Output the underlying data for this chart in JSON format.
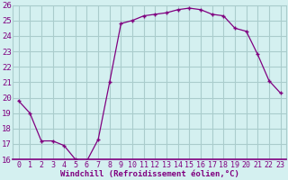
{
  "x": [
    0,
    1,
    2,
    3,
    4,
    5,
    6,
    7,
    8,
    9,
    10,
    11,
    12,
    13,
    14,
    15,
    16,
    17,
    18,
    19,
    20,
    21,
    22,
    23
  ],
  "y": [
    19.8,
    19.0,
    17.2,
    17.2,
    16.9,
    16.0,
    15.9,
    17.3,
    21.0,
    24.8,
    25.0,
    25.3,
    25.4,
    25.5,
    25.7,
    25.8,
    25.7,
    25.4,
    25.3,
    24.5,
    24.3,
    22.8,
    21.1,
    20.3
  ],
  "line_color": "#800080",
  "marker_color": "#800080",
  "bg_color": "#d4f0f0",
  "grid_color": "#aacccc",
  "xlabel": "Windchill (Refroidissement éolien,°C)",
  "ylim": [
    16,
    26
  ],
  "xlim": [
    -0.5,
    23.5
  ],
  "yticks": [
    16,
    17,
    18,
    19,
    20,
    21,
    22,
    23,
    24,
    25,
    26
  ],
  "xticks": [
    0,
    1,
    2,
    3,
    4,
    5,
    6,
    7,
    8,
    9,
    10,
    11,
    12,
    13,
    14,
    15,
    16,
    17,
    18,
    19,
    20,
    21,
    22,
    23
  ],
  "tick_label_color": "#800080",
  "xlabel_color": "#800080",
  "xlabel_fontsize": 6.5,
  "tick_fontsize": 6.0,
  "ytick_fontsize": 6.5
}
